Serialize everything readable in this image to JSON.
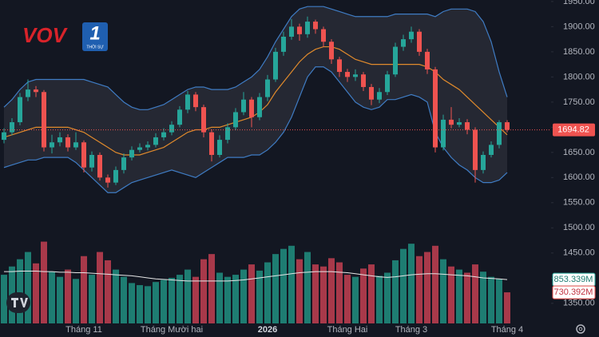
{
  "logo": {
    "brand": "VOV",
    "channel": "1",
    "subtitle": "THỜI SỰ"
  },
  "chart_data": {
    "type": "candlestick",
    "categories": [
      null,
      null,
      null,
      null,
      null,
      null,
      null,
      null,
      null,
      null,
      "Tháng 11",
      null,
      null,
      null,
      null,
      null,
      null,
      null,
      null,
      null,
      null,
      "Tháng Mười hai",
      null,
      null,
      null,
      null,
      null,
      null,
      null,
      null,
      null,
      null,
      null,
      "2026",
      null,
      null,
      null,
      null,
      null,
      null,
      null,
      null,
      null,
      "Tháng Hai",
      null,
      null,
      null,
      null,
      null,
      null,
      null,
      "Tháng 3",
      null,
      null,
      null,
      null,
      null,
      null,
      null,
      null,
      null,
      null,
      null,
      "Tháng 4"
    ],
    "candles": [
      [
        1675,
        1698,
        1668,
        1690
      ],
      [
        1690,
        1718,
        1684,
        1710
      ],
      [
        1710,
        1768,
        1704,
        1760
      ],
      [
        1760,
        1795,
        1752,
        1775
      ],
      [
        1775,
        1782,
        1760,
        1770
      ],
      [
        1770,
        1774,
        1652,
        1660
      ],
      [
        1660,
        1685,
        1648,
        1670
      ],
      [
        1670,
        1690,
        1662,
        1680
      ],
      [
        1680,
        1686,
        1652,
        1660
      ],
      [
        1660,
        1690,
        1655,
        1670
      ],
      [
        1670,
        1674,
        1610,
        1620
      ],
      [
        1620,
        1652,
        1612,
        1645
      ],
      [
        1645,
        1650,
        1594,
        1600
      ],
      [
        1600,
        1606,
        1580,
        1590
      ],
      [
        1590,
        1622,
        1585,
        1615
      ],
      [
        1615,
        1648,
        1608,
        1640
      ],
      [
        1640,
        1662,
        1634,
        1655
      ],
      [
        1655,
        1668,
        1650,
        1660
      ],
      [
        1660,
        1672,
        1654,
        1665
      ],
      [
        1665,
        1688,
        1660,
        1680
      ],
      [
        1680,
        1698,
        1674,
        1690
      ],
      [
        1690,
        1712,
        1684,
        1705
      ],
      [
        1705,
        1742,
        1700,
        1735
      ],
      [
        1735,
        1772,
        1728,
        1765
      ],
      [
        1765,
        1770,
        1732,
        1740
      ],
      [
        1740,
        1745,
        1680,
        1690
      ],
      [
        1690,
        1696,
        1632,
        1645
      ],
      [
        1645,
        1684,
        1640,
        1675
      ],
      [
        1675,
        1708,
        1668,
        1700
      ],
      [
        1700,
        1738,
        1694,
        1730
      ],
      [
        1730,
        1770,
        1724,
        1755
      ],
      [
        1755,
        1760,
        1700,
        1720
      ],
      [
        1720,
        1768,
        1714,
        1760
      ],
      [
        1760,
        1804,
        1752,
        1795
      ],
      [
        1795,
        1858,
        1790,
        1850
      ],
      [
        1850,
        1890,
        1842,
        1880
      ],
      [
        1880,
        1915,
        1874,
        1900
      ],
      [
        1900,
        1906,
        1872,
        1885
      ],
      [
        1885,
        1920,
        1878,
        1910
      ],
      [
        1910,
        1914,
        1886,
        1895
      ],
      [
        1895,
        1900,
        1860,
        1870
      ],
      [
        1870,
        1875,
        1826,
        1835
      ],
      [
        1835,
        1840,
        1800,
        1810
      ],
      [
        1810,
        1816,
        1790,
        1800
      ],
      [
        1800,
        1815,
        1792,
        1805
      ],
      [
        1805,
        1810,
        1772,
        1780
      ],
      [
        1780,
        1786,
        1744,
        1755
      ],
      [
        1755,
        1778,
        1748,
        1770
      ],
      [
        1770,
        1812,
        1764,
        1805
      ],
      [
        1805,
        1868,
        1800,
        1860
      ],
      [
        1860,
        1884,
        1852,
        1875
      ],
      [
        1875,
        1900,
        1868,
        1890
      ],
      [
        1890,
        1895,
        1842,
        1850
      ],
      [
        1850,
        1856,
        1806,
        1815
      ],
      [
        1815,
        1820,
        1650,
        1660
      ],
      [
        1660,
        1725,
        1654,
        1715
      ],
      [
        1715,
        1740,
        1698,
        1705
      ],
      [
        1705,
        1718,
        1700,
        1710
      ],
      [
        1710,
        1716,
        1686,
        1695
      ],
      [
        1695,
        1700,
        1590,
        1615
      ],
      [
        1615,
        1652,
        1608,
        1645
      ],
      [
        1645,
        1672,
        1640,
        1665
      ],
      [
        1665,
        1714,
        1658,
        1710
      ],
      [
        1710,
        1714,
        1690,
        1694.82
      ]
    ],
    "bands": {
      "upper": [
        1740,
        1755,
        1775,
        1790,
        1795,
        1795,
        1795,
        1795,
        1795,
        1795,
        1795,
        1790,
        1785,
        1780,
        1765,
        1750,
        1740,
        1735,
        1735,
        1740,
        1745,
        1755,
        1765,
        1775,
        1780,
        1780,
        1775,
        1775,
        1775,
        1780,
        1790,
        1800,
        1815,
        1840,
        1870,
        1895,
        1920,
        1935,
        1940,
        1940,
        1940,
        1935,
        1930,
        1925,
        1920,
        1920,
        1920,
        1920,
        1920,
        1925,
        1925,
        1925,
        1925,
        1925,
        1920,
        1930,
        1935,
        1935,
        1935,
        1930,
        1910,
        1870,
        1810,
        1760
      ],
      "middle": [
        1680,
        1685,
        1690,
        1695,
        1700,
        1700,
        1700,
        1700,
        1700,
        1695,
        1690,
        1680,
        1670,
        1660,
        1650,
        1645,
        1645,
        1645,
        1650,
        1655,
        1660,
        1670,
        1680,
        1690,
        1695,
        1695,
        1700,
        1700,
        1705,
        1710,
        1715,
        1720,
        1730,
        1745,
        1770,
        1790,
        1810,
        1830,
        1845,
        1855,
        1860,
        1860,
        1855,
        1845,
        1835,
        1830,
        1825,
        1825,
        1825,
        1825,
        1825,
        1825,
        1825,
        1820,
        1810,
        1795,
        1785,
        1775,
        1760,
        1745,
        1730,
        1715,
        1700,
        1685
      ],
      "lower": [
        1620,
        1625,
        1630,
        1635,
        1635,
        1640,
        1640,
        1640,
        1640,
        1630,
        1615,
        1600,
        1585,
        1570,
        1570,
        1580,
        1590,
        1595,
        1600,
        1605,
        1610,
        1615,
        1610,
        1605,
        1600,
        1610,
        1620,
        1630,
        1640,
        1640,
        1640,
        1645,
        1645,
        1655,
        1670,
        1690,
        1720,
        1760,
        1800,
        1820,
        1820,
        1810,
        1790,
        1770,
        1750,
        1740,
        1735,
        1740,
        1755,
        1755,
        1760,
        1765,
        1760,
        1750,
        1690,
        1660,
        1640,
        1625,
        1615,
        1600,
        1590,
        1590,
        1595,
        1610
      ]
    },
    "ylim": [
      1283,
      1953
    ],
    "yticks": [
      {
        "value": 1350,
        "label": "1350.00"
      },
      {
        "value": 1400,
        "label": "1400.00"
      },
      {
        "value": 1450,
        "label": "1450.00"
      },
      {
        "value": 1500,
        "label": "1500.00"
      },
      {
        "value": 1550,
        "label": "1550.00"
      },
      {
        "value": 1600,
        "label": "1600.00"
      },
      {
        "value": 1650,
        "label": "1650.00"
      },
      {
        "value": 1700,
        "label": "1700.00"
      },
      {
        "value": 1750,
        "label": "1750.00"
      },
      {
        "value": 1800,
        "label": "1800.00"
      },
      {
        "value": 1850,
        "label": "1850.00"
      },
      {
        "value": 1900,
        "label": "1900.00"
      },
      {
        "value": 1950,
        "label": "1950.00"
      }
    ],
    "volume": {
      "values": [
        900,
        980,
        1050,
        1120,
        1010,
        1220,
        930,
        880,
        950,
        860,
        1080,
        900,
        1120,
        1040,
        950,
        880,
        820,
        800,
        790,
        830,
        850,
        870,
        900,
        950,
        880,
        1050,
        1100,
        920,
        880,
        900,
        950,
        1000,
        940,
        1020,
        1100,
        1150,
        1180,
        1050,
        1120,
        1000,
        980,
        1060,
        1020,
        900,
        880,
        960,
        1000,
        890,
        920,
        1040,
        1150,
        1200,
        1080,
        1120,
        1180,
        1050,
        980,
        950,
        920,
        1000,
        930,
        880,
        860,
        730.392
      ],
      "value_label": "730.392M",
      "ma": [
        930,
        930,
        935,
        935,
        935,
        930,
        930,
        925,
        925,
        920,
        920,
        915,
        910,
        905,
        900,
        895,
        890,
        880,
        870,
        860,
        855,
        850,
        845,
        840,
        840,
        840,
        840,
        840,
        840,
        845,
        850,
        860,
        870,
        880,
        890,
        900,
        910,
        920,
        925,
        930,
        930,
        930,
        925,
        920,
        910,
        900,
        890,
        880,
        875,
        880,
        890,
        900,
        905,
        910,
        910,
        905,
        900,
        895,
        890,
        880,
        870,
        865,
        860,
        853.339
      ],
      "ma_label": "853.339M",
      "vlim": [
        430,
        1240
      ]
    },
    "up_color": "#26a69a",
    "down_color": "#ef5350",
    "volume_up_color": "#1e7d72",
    "volume_down_color": "#a8394a",
    "band_color": "#3f7cc4",
    "middle_color": "#e08a2c",
    "volume_ma_color": "#e6e6e6"
  }
}
